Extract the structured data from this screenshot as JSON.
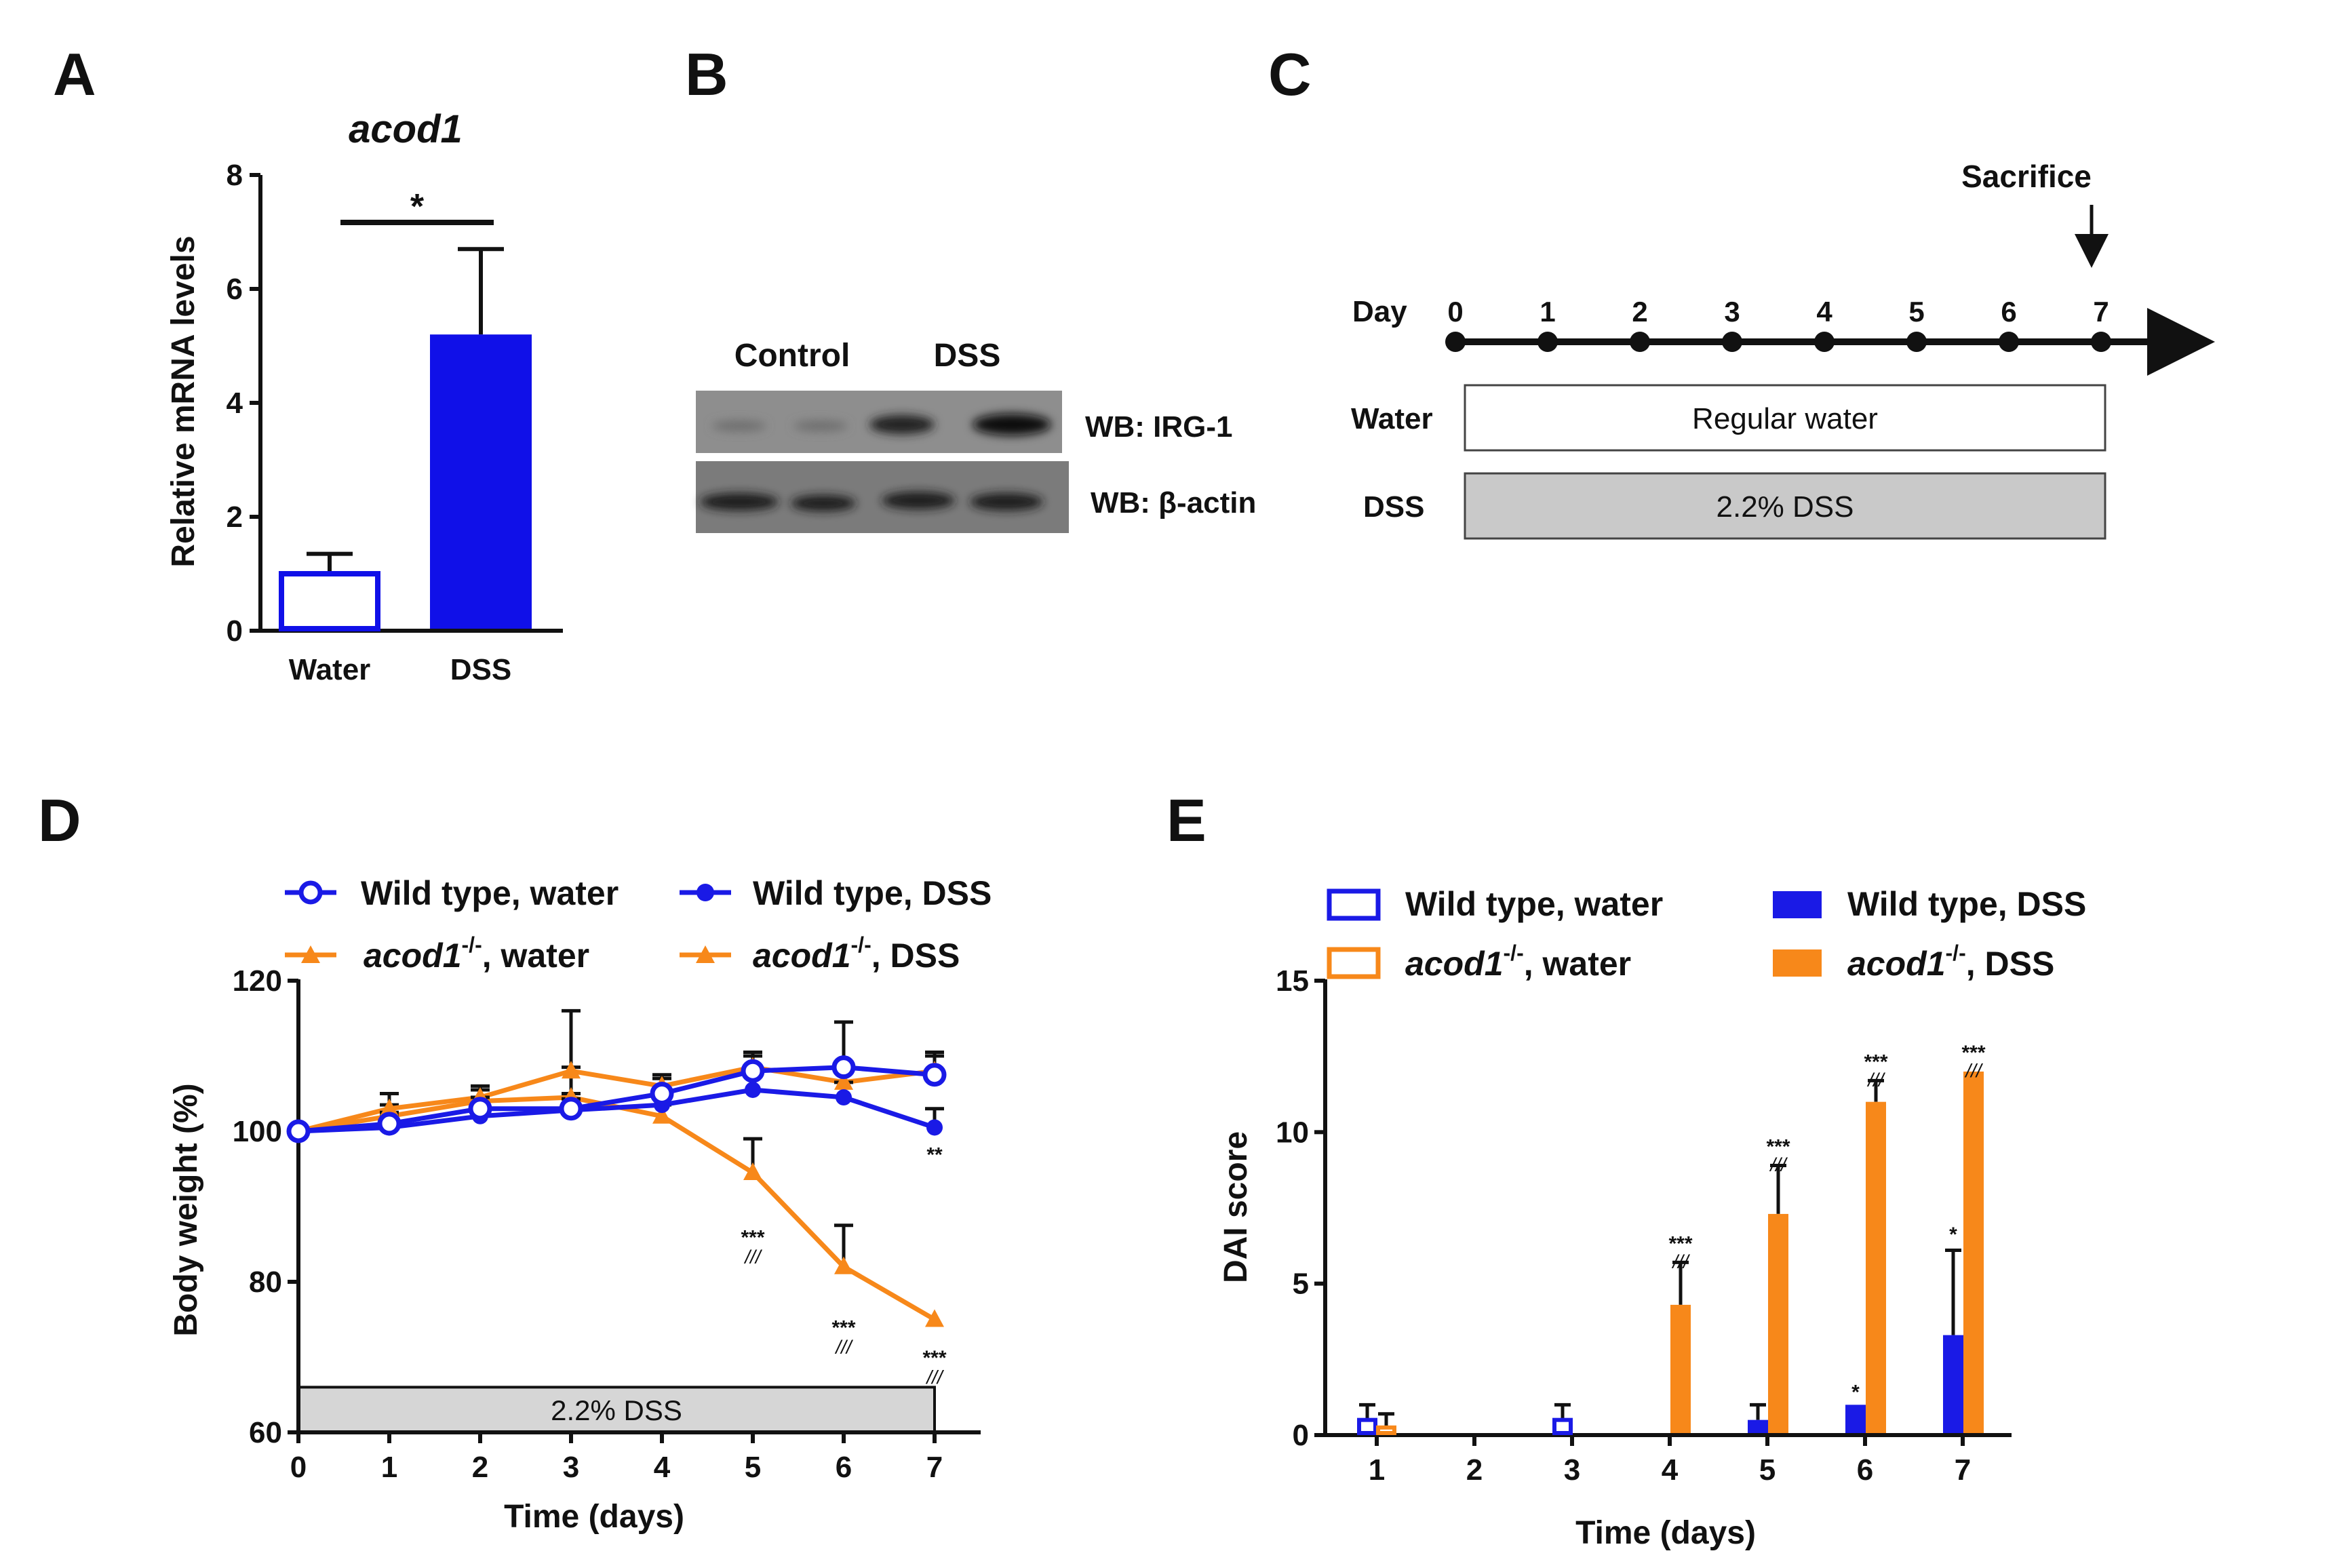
{
  "panels": {
    "a": "A",
    "b": "B",
    "c": "C",
    "d": "D",
    "e": "E"
  },
  "chart_data": [
    {
      "panel": "A",
      "type": "bar",
      "title": "acod1",
      "ylabel": "Relative mRNA levels",
      "ylim": [
        0,
        8
      ],
      "yticks": [
        "0",
        "2",
        "4",
        "6",
        "8"
      ],
      "categories": [
        "Water",
        "DSS"
      ],
      "values": [
        1.0,
        5.2
      ],
      "errors": [
        0.35,
        1.5
      ],
      "significance": "*",
      "colors": {
        "bar": "#1010e8",
        "edge": "#1010e8"
      }
    },
    {
      "panel": "B",
      "type": "western-blot",
      "lane_labels": [
        "Control",
        "DSS"
      ],
      "blot_labels": [
        "WB: IRG-1",
        "WB: β-actin"
      ]
    },
    {
      "panel": "C",
      "type": "timeline",
      "day_label": "Day",
      "days": [
        "0",
        "1",
        "2",
        "3",
        "4",
        "5",
        "6",
        "7"
      ],
      "sacrifice_label": "Sacrifice",
      "rows": [
        {
          "label": "Water",
          "bar_text": "Regular water",
          "fill": "#ffffff"
        },
        {
          "label": "DSS",
          "bar_text": "2.2% DSS",
          "fill": "#c9c9c9"
        }
      ]
    },
    {
      "panel": "D",
      "type": "line",
      "xlabel": "Time (days)",
      "ylabel": "Body weight (%)",
      "x": [
        0,
        1,
        2,
        3,
        4,
        5,
        6,
        7
      ],
      "xticks": [
        "0",
        "1",
        "2",
        "3",
        "4",
        "5",
        "6",
        "7"
      ],
      "ylim": [
        60,
        120
      ],
      "yticks": [
        "60",
        "80",
        "100",
        "120"
      ],
      "dss_bar_text": "2.2% DSS",
      "legend": {
        "s0_name": "Wild type, water",
        "s1_name": "Wild type, DSS",
        "s2_italic": "acod1",
        "s2_sup": "-/-",
        "s2_rest": ", water",
        "s3_italic": "acod1",
        "s3_sup": "-/-",
        "s3_rest": ", DSS"
      },
      "series": [
        {
          "name": "Wild type, water",
          "color": "#1a1ae6",
          "marker": "open-circle",
          "values": [
            100,
            101,
            103,
            103,
            105,
            108,
            108.5,
            107.5
          ],
          "errors": [
            0,
            1.5,
            1.5,
            2,
            2,
            2,
            6,
            2.5
          ]
        },
        {
          "name": "Wild type, DSS",
          "color": "#1a1ae6",
          "marker": "filled-circle",
          "values": [
            100,
            100.5,
            102,
            102.8,
            103.5,
            105.5,
            104.5,
            100.5
          ],
          "errors": [
            0,
            1.5,
            1.5,
            1.5,
            1.5,
            2,
            2,
            2.5
          ]
        },
        {
          "name": "acod1-/-, water",
          "color": "#f7881a",
          "marker": "triangle",
          "values": [
            100,
            103,
            104.5,
            108,
            106,
            108.5,
            106.5,
            108
          ],
          "errors": [
            0,
            2,
            1.5,
            8,
            1.5,
            2,
            2,
            2.5
          ]
        },
        {
          "name": "acod1-/-, DSS",
          "color": "#f7881a",
          "marker": "triangle",
          "values": [
            100,
            102,
            104,
            104.5,
            102,
            94.5,
            82,
            75
          ],
          "errors": [
            0,
            1.5,
            1.5,
            4,
            1.5,
            4.5,
            5.5,
            0
          ]
        }
      ],
      "annotations": [
        {
          "x": 5,
          "y": 85,
          "text": "***",
          "sub": "///"
        },
        {
          "x": 6,
          "y": 73,
          "text": "***",
          "sub": "///"
        },
        {
          "x": 7,
          "y": 69,
          "text": "***",
          "sub": "///"
        },
        {
          "x": 7,
          "y": 96,
          "text": "**",
          "sub": ""
        }
      ]
    },
    {
      "panel": "E",
      "type": "bar",
      "xlabel": "Time (days)",
      "ylabel": "DAI score",
      "categories": [
        "1",
        "2",
        "3",
        "4",
        "5",
        "6",
        "7"
      ],
      "ylim": [
        0,
        15
      ],
      "yticks": [
        "0",
        "5",
        "10",
        "15"
      ],
      "legend": {
        "s0_name": "Wild type, water",
        "s1_name": "Wild type, DSS",
        "s2_italic": "acod1",
        "s2_sup": "-/-",
        "s2_rest": ", water",
        "s3_italic": "acod1",
        "s3_sup": "-/-",
        "s3_rest": ", DSS"
      },
      "series": [
        {
          "name": "Wild type, water",
          "style": "open",
          "color": "#1a1ae6",
          "values": [
            0.5,
            0,
            0.5,
            0,
            0,
            0,
            0
          ],
          "errors": [
            0.5,
            0,
            0.5,
            0,
            0,
            0,
            0
          ]
        },
        {
          "name": "acod1-/-, water",
          "style": "open",
          "color": "#f7881a",
          "values": [
            0.25,
            0,
            0,
            0,
            0,
            0,
            0
          ],
          "errors": [
            0.45,
            0,
            0,
            0,
            0,
            0,
            0
          ]
        },
        {
          "name": "Wild type, DSS",
          "style": "filled",
          "color": "#1a1ae6",
          "values": [
            0,
            0,
            0,
            0,
            0.5,
            1.0,
            3.3
          ],
          "errors": [
            0,
            0,
            0,
            0,
            0.5,
            0,
            2.8
          ]
        },
        {
          "name": "acod1-/-, DSS",
          "style": "filled",
          "color": "#f7881a",
          "values": [
            0,
            0,
            0,
            4.3,
            7.3,
            11.0,
            12.0
          ],
          "errors": [
            0,
            0,
            0,
            1.4,
            1.6,
            0.7,
            0
          ]
        }
      ],
      "annotations": [
        {
          "x": "4",
          "series": "acod1-/-, DSS",
          "y": 6.1,
          "text": "***",
          "sub": "///"
        },
        {
          "x": "5",
          "series": "acod1-/-, DSS",
          "y": 9.3,
          "text": "***",
          "sub": "///"
        },
        {
          "x": "6",
          "series": "acod1-/-, DSS",
          "y": 12.1,
          "text": "***",
          "sub": "///"
        },
        {
          "x": "7",
          "series": "acod1-/-, DSS",
          "y": 12.4,
          "text": "***",
          "sub": "///"
        },
        {
          "x": "6",
          "series": "Wild type, DSS",
          "y": 1.2,
          "text": "*",
          "sub": ""
        },
        {
          "x": "7",
          "series": "Wild type, DSS",
          "y": 6.4,
          "text": "*",
          "sub": ""
        }
      ]
    }
  ]
}
